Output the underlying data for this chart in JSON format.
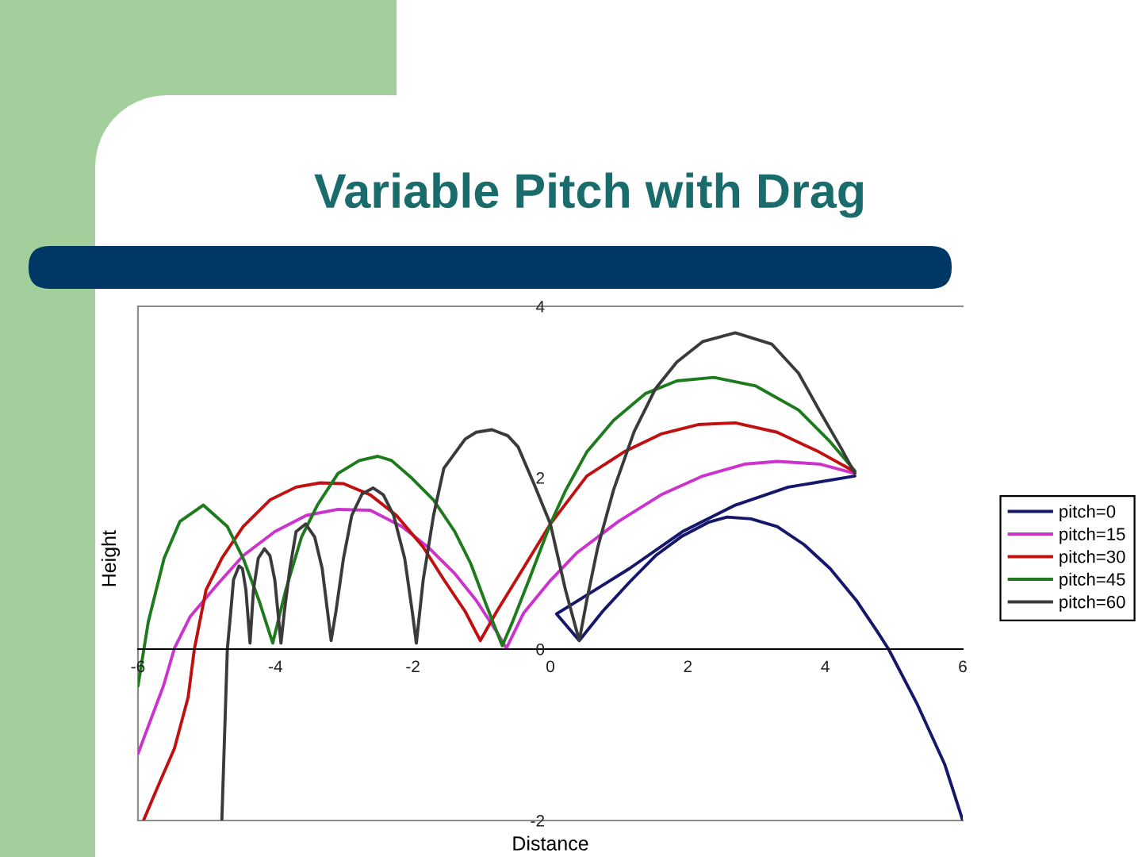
{
  "chart_data": {
    "type": "line",
    "title": "Variable Pitch with Drag",
    "xlabel": "Distance",
    "ylabel": "Height",
    "xlim": [
      -6,
      6
    ],
    "ylim": [
      -2,
      4
    ],
    "xticks": [
      -6,
      -4,
      -2,
      0,
      2,
      4,
      6
    ],
    "yticks": [
      -2,
      0,
      2,
      4
    ],
    "legend": "right",
    "line_style": "solid",
    "series": [
      {
        "name": "pitch=0",
        "color": "#16166a",
        "x": [
          4.43,
          3.46,
          2.69,
          1.92,
          1.15,
          0.09,
          0.42,
          0.76,
          1.15,
          1.53,
          1.92,
          2.3,
          2.57,
          2.92,
          3.3,
          3.69,
          4.07,
          4.45,
          4.76,
          4.92,
          5.33,
          5.74,
          6.0
        ],
        "values": [
          2.02,
          1.89,
          1.68,
          1.37,
          0.94,
          0.41,
          0.1,
          0.44,
          0.78,
          1.09,
          1.32,
          1.48,
          1.54,
          1.52,
          1.43,
          1.22,
          0.94,
          0.57,
          0.2,
          0.0,
          -0.63,
          -1.35,
          -2.0
        ]
      },
      {
        "name": "pitch=15",
        "color": "#cc33cc",
        "x": [
          4.43,
          3.91,
          3.3,
          2.84,
          2.22,
          1.61,
          0.99,
          0.38,
          0.0,
          -0.39,
          -0.64,
          -0.78,
          -1.08,
          -1.39,
          -1.78,
          -2.16,
          -2.62,
          -3.09,
          -3.55,
          -4.01,
          -4.47,
          -4.85,
          -5.24,
          -5.47,
          -5.63,
          -6.0
        ],
        "values": [
          2.05,
          2.16,
          2.19,
          2.16,
          2.02,
          1.8,
          1.49,
          1.12,
          0.8,
          0.42,
          0.01,
          0.2,
          0.57,
          0.88,
          1.19,
          1.43,
          1.62,
          1.63,
          1.56,
          1.37,
          1.09,
          0.75,
          0.38,
          0.01,
          -0.43,
          -1.22
        ]
      },
      {
        "name": "pitch=30",
        "color": "#c01010",
        "x": [
          4.43,
          3.91,
          3.3,
          2.69,
          2.15,
          1.61,
          1.07,
          0.53,
          0.0,
          -0.39,
          -0.78,
          -1.02,
          -1.24,
          -1.55,
          -1.85,
          -2.24,
          -2.62,
          -3.01,
          -3.35,
          -3.7,
          -4.08,
          -4.47,
          -4.78,
          -5.01,
          -5.18,
          -5.27,
          -5.47,
          -5.72,
          -5.92
        ],
        "values": [
          2.07,
          2.3,
          2.53,
          2.64,
          2.62,
          2.51,
          2.3,
          2.02,
          1.46,
          0.95,
          0.44,
          0.1,
          0.44,
          0.81,
          1.19,
          1.56,
          1.8,
          1.93,
          1.94,
          1.89,
          1.74,
          1.43,
          1.06,
          0.69,
          0.0,
          -0.56,
          -1.16,
          -1.62,
          -2.0
        ]
      },
      {
        "name": "pitch=45",
        "color": "#1d7a1d",
        "x": [
          4.43,
          4.07,
          3.61,
          2.99,
          2.38,
          1.84,
          1.38,
          0.92,
          0.53,
          0.22,
          0.0,
          -0.31,
          -0.55,
          -0.7,
          -0.93,
          -1.16,
          -1.39,
          -1.7,
          -2.01,
          -2.31,
          -2.51,
          -2.78,
          -3.09,
          -3.39,
          -3.62,
          -3.85,
          -4.04,
          -4.24,
          -4.47,
          -4.7,
          -5.05,
          -5.39,
          -5.62,
          -5.85,
          -6.0
        ],
        "values": [
          2.08,
          2.42,
          2.79,
          3.07,
          3.17,
          3.13,
          2.98,
          2.67,
          2.3,
          1.85,
          1.46,
          0.81,
          0.32,
          0.04,
          0.51,
          1.0,
          1.37,
          1.74,
          1.99,
          2.2,
          2.25,
          2.2,
          2.05,
          1.68,
          1.31,
          0.69,
          0.07,
          0.57,
          1.06,
          1.43,
          1.68,
          1.49,
          1.06,
          0.32,
          -0.43
        ]
      },
      {
        "name": "pitch=60",
        "color": "#3a3a3a",
        "x": [
          4.43,
          4.22,
          3.91,
          3.61,
          3.22,
          2.69,
          2.22,
          1.84,
          1.53,
          1.22,
          0.92,
          0.69,
          0.53,
          0.42,
          0.22,
          0.0,
          -0.24,
          -0.47,
          -0.62,
          -0.85,
          -1.08,
          -1.24,
          -1.55,
          -1.7,
          -1.85,
          -1.95,
          -2.01,
          -2.12,
          -2.28,
          -2.43,
          -2.58,
          -2.74,
          -2.89,
          -3.01,
          -3.12,
          -3.19,
          -3.32,
          -3.43,
          -3.56,
          -3.7,
          -3.79,
          -3.87,
          -3.92,
          -4.01,
          -4.08,
          -4.16,
          -4.25,
          -4.32,
          -4.37,
          -4.43,
          -4.48,
          -4.53,
          -4.61,
          -4.65,
          -4.7,
          -4.74,
          -4.78
        ],
        "values": [
          2.05,
          2.36,
          2.79,
          3.22,
          3.56,
          3.69,
          3.59,
          3.35,
          3.04,
          2.54,
          1.86,
          1.19,
          0.57,
          0.1,
          0.69,
          1.46,
          1.93,
          2.36,
          2.49,
          2.56,
          2.53,
          2.45,
          2.11,
          1.56,
          0.81,
          0.07,
          0.44,
          1.06,
          1.56,
          1.8,
          1.88,
          1.81,
          1.56,
          1.06,
          0.44,
          0.1,
          0.94,
          1.31,
          1.46,
          1.37,
          0.94,
          0.44,
          0.07,
          0.81,
          1.09,
          1.17,
          1.06,
          0.69,
          0.07,
          0.69,
          0.94,
          0.97,
          0.81,
          0.44,
          0.0,
          -1.0,
          -2.0
        ]
      }
    ]
  }
}
